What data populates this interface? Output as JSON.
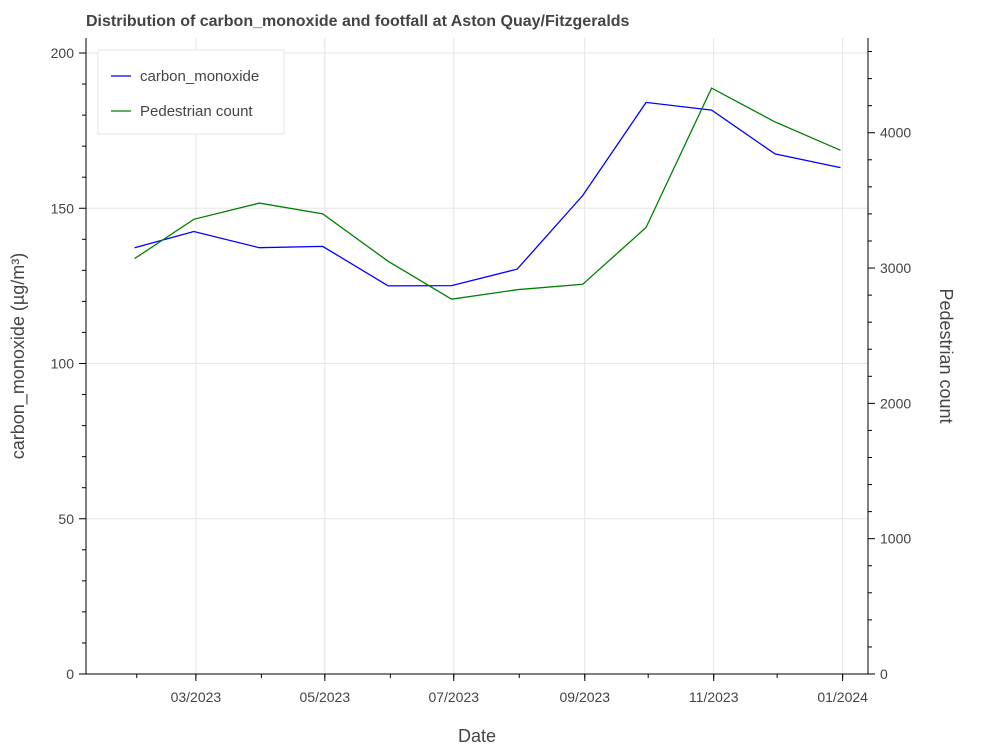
{
  "chart_data": {
    "type": "line",
    "title": "Distribution of carbon_monoxide and footfall at Aston Quay/Fitzgeralds",
    "xlabel": "Date",
    "ylabel_left": "carbon_monoxide (µg/m³)",
    "ylabel_right": "Pedestrian count",
    "x_ticks": [
      "03/2023",
      "05/2023",
      "07/2023",
      "09/2023",
      "11/2023",
      "01/2024"
    ],
    "ylim_left": [
      0,
      200
    ],
    "yticks_left": [
      0,
      50,
      100,
      150,
      200
    ],
    "ylim_right": [
      0,
      4700
    ],
    "yticks_right": [
      0,
      1000,
      2000,
      3000,
      4000
    ],
    "grid": true,
    "legend_position": "top-left",
    "x": [
      "2023-01-31",
      "2023-02-28",
      "2023-03-31",
      "2023-04-30",
      "2023-05-31",
      "2023-06-30",
      "2023-07-31",
      "2023-08-31",
      "2023-09-30",
      "2023-10-31",
      "2023-11-30",
      "2023-12-31"
    ],
    "series": [
      {
        "name": "carbon_monoxide",
        "axis": "left",
        "color": "#0000ff",
        "values": [
          137.3,
          142.5,
          137.3,
          137.7,
          125.0,
          125.1,
          130.4,
          154.1,
          184.1,
          181.6,
          167.5,
          163.1
        ]
      },
      {
        "name": "Pedestrian count",
        "axis": "right",
        "color": "#008000",
        "values": [
          3070,
          3360,
          3480,
          3400,
          3050,
          2770,
          2840,
          2880,
          3300,
          4330,
          4080,
          3870
        ]
      }
    ]
  }
}
